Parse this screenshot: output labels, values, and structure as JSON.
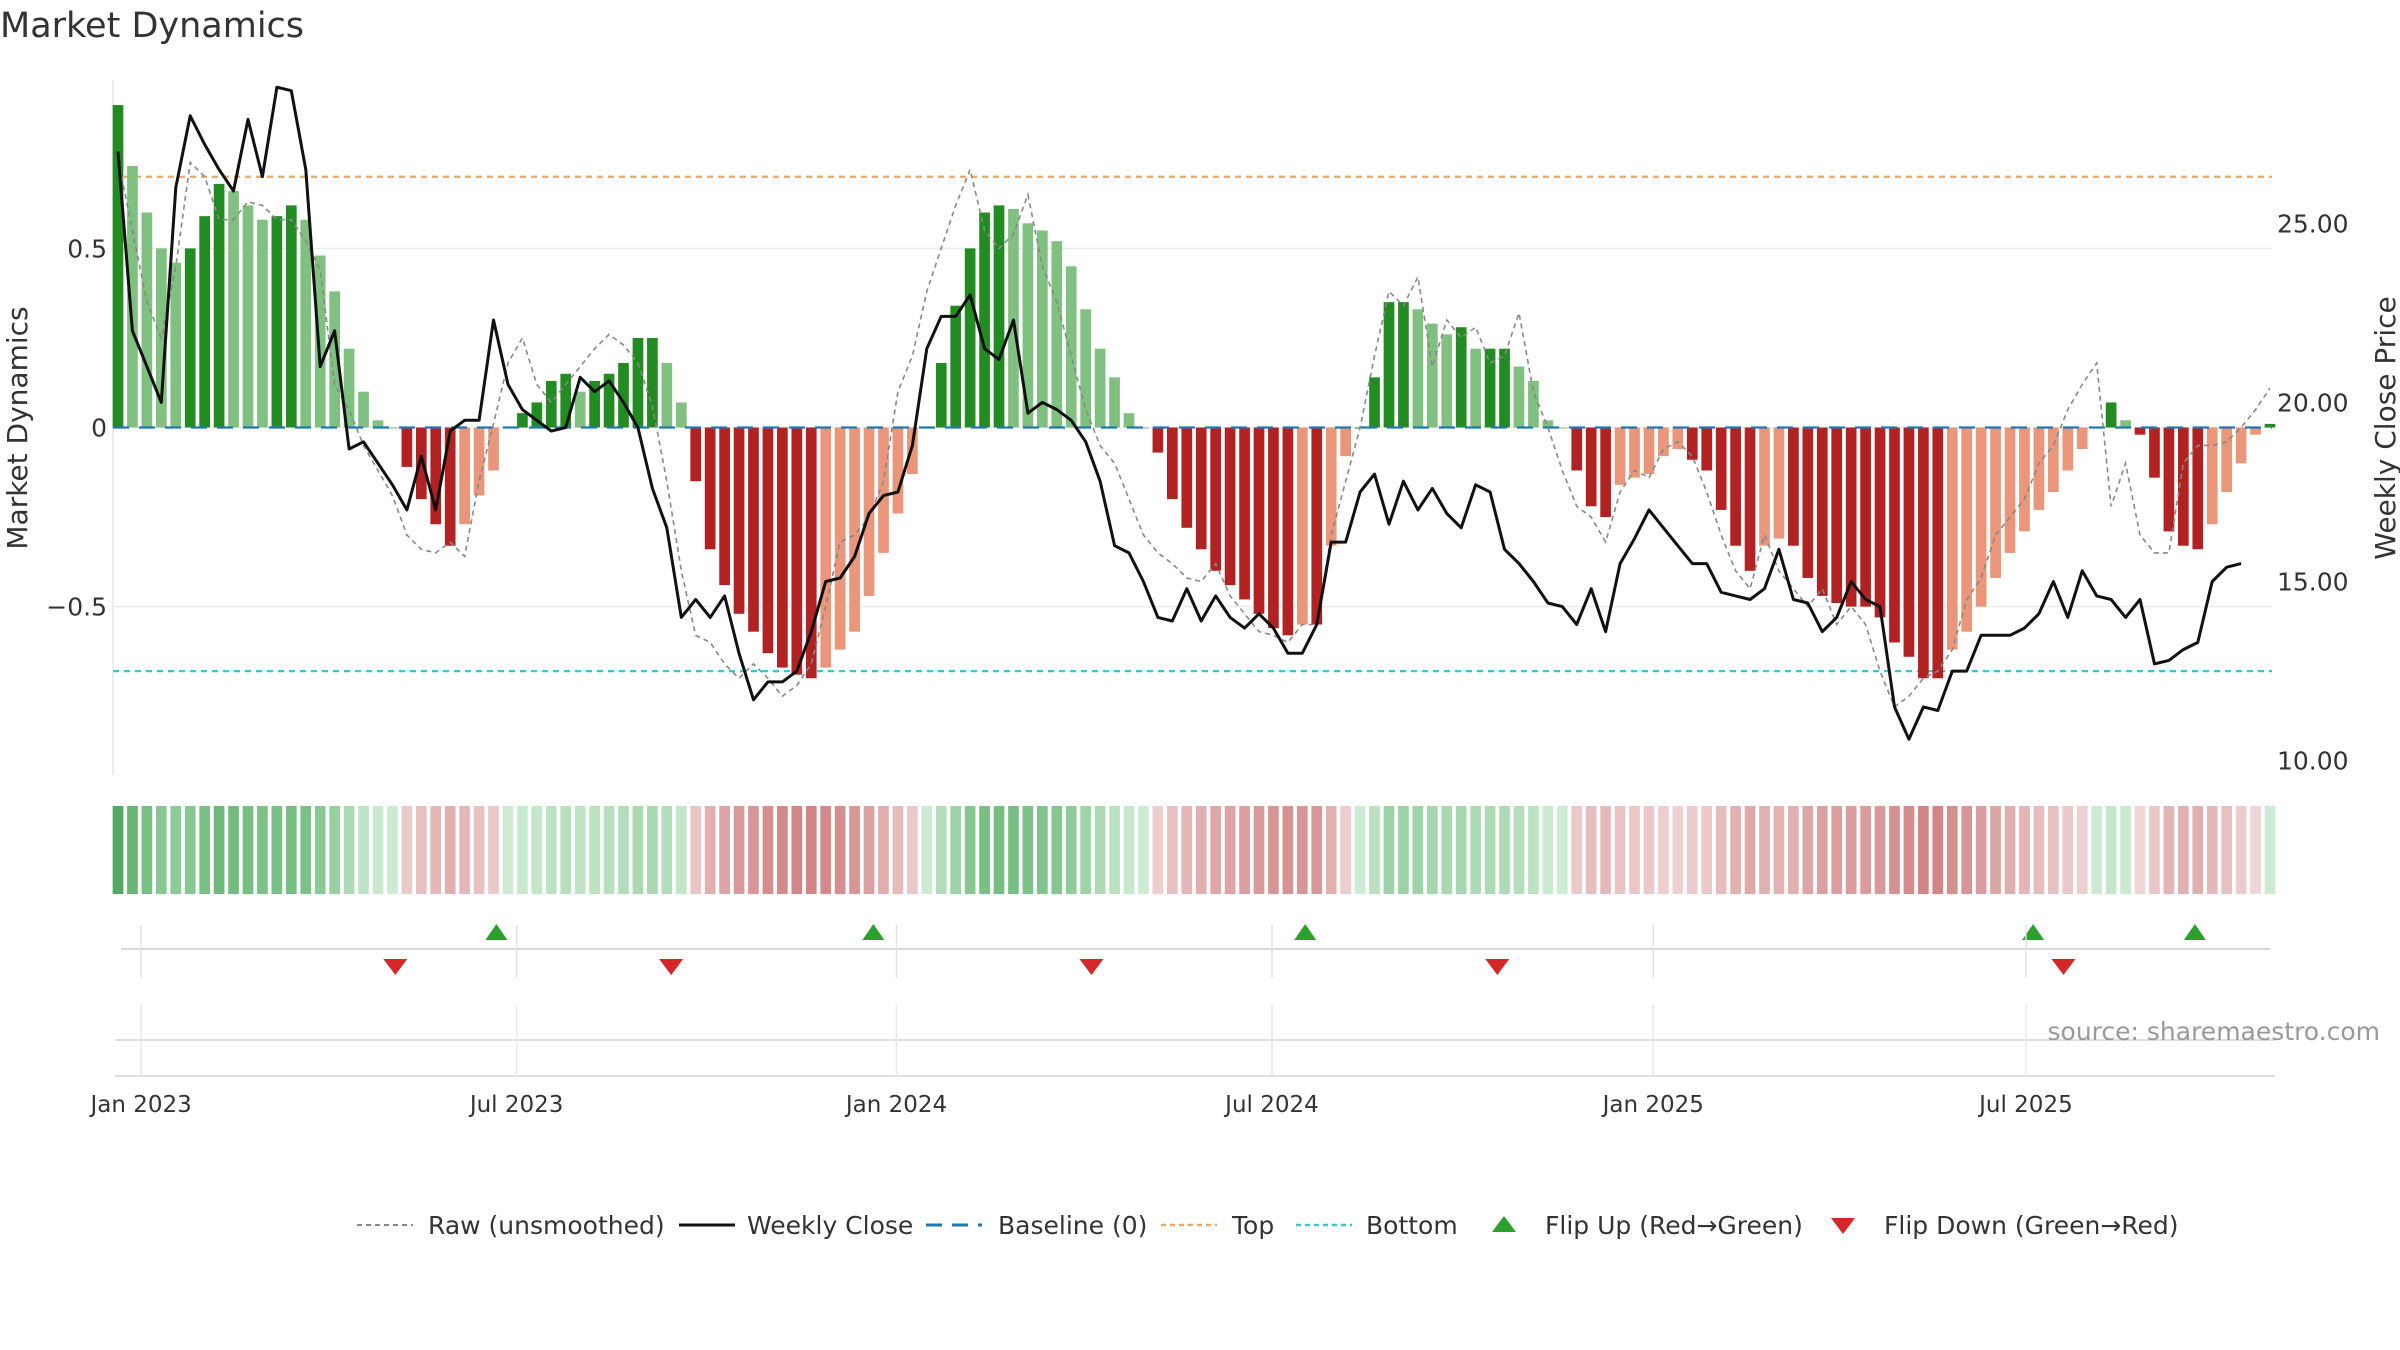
{
  "chart_data": {
    "type": "bar+line",
    "title": "Market Dynamics",
    "ylabel_left": "Market Dynamics",
    "ylabel_right": "Weekly Close Price",
    "source": "source: sharemaestro.com",
    "left_axis": {
      "ylim": [
        -0.97,
        0.97
      ],
      "ticks": [
        0.5,
        0,
        -0.5
      ],
      "tick_labels": [
        "0.5",
        "0",
        "−0.5"
      ]
    },
    "right_axis": {
      "ylim": [
        9.6,
        29.0
      ],
      "ticks": [
        25,
        20,
        15,
        10
      ],
      "tick_labels": [
        "25.00",
        "20.00",
        "15.00",
        "10.00"
      ]
    },
    "x_axis": {
      "start": "2022-12-26",
      "weeks": 144,
      "ticks": [
        {
          "week": 1.6,
          "label": "Jan 2023"
        },
        {
          "week": 27.6,
          "label": "Jul 2023"
        },
        {
          "week": 53.9,
          "label": "Jan 2024"
        },
        {
          "week": 79.9,
          "label": "Jul 2024"
        },
        {
          "week": 106.3,
          "label": "Jan 2025"
        },
        {
          "week": 132.1,
          "label": "Jul 2025"
        }
      ]
    },
    "thresholds": {
      "top": 0.7,
      "bottom": -0.68,
      "baseline": 0
    },
    "smoothed": [
      0.9,
      0.73,
      0.6,
      0.5,
      0.46,
      0.5,
      0.59,
      0.68,
      0.66,
      0.62,
      0.58,
      0.59,
      0.62,
      0.58,
      0.48,
      0.38,
      0.22,
      0.1,
      0.02,
      0.0,
      -0.11,
      -0.2,
      -0.27,
      -0.33,
      -0.27,
      -0.19,
      -0.12,
      0.0,
      0.04,
      0.07,
      0.13,
      0.15,
      0.1,
      0.13,
      0.15,
      0.18,
      0.25,
      0.25,
      0.18,
      0.07,
      -0.15,
      -0.34,
      -0.44,
      -0.52,
      -0.57,
      -0.63,
      -0.67,
      -0.69,
      -0.7,
      -0.67,
      -0.62,
      -0.57,
      -0.47,
      -0.35,
      -0.24,
      -0.13,
      0.0,
      0.18,
      0.34,
      0.5,
      0.6,
      0.62,
      0.61,
      0.57,
      0.55,
      0.52,
      0.45,
      0.33,
      0.22,
      0.14,
      0.04,
      0.0,
      -0.07,
      -0.2,
      -0.28,
      -0.34,
      -0.4,
      -0.44,
      -0.48,
      -0.52,
      -0.56,
      -0.58,
      -0.55,
      -0.55,
      -0.33,
      -0.08,
      0.0,
      0.14,
      0.35,
      0.35,
      0.33,
      0.29,
      0.26,
      0.28,
      0.22,
      0.22,
      0.22,
      0.17,
      0.13,
      0.02,
      0.0,
      -0.12,
      -0.22,
      -0.25,
      -0.16,
      -0.14,
      -0.13,
      -0.08,
      -0.06,
      -0.09,
      -0.12,
      -0.23,
      -0.33,
      -0.4,
      -0.33,
      -0.31,
      -0.33,
      -0.42,
      -0.47,
      -0.49,
      -0.5,
      -0.5,
      -0.53,
      -0.6,
      -0.64,
      -0.7,
      -0.7,
      -0.62,
      -0.57,
      -0.5,
      -0.42,
      -0.35,
      -0.29,
      -0.23,
      -0.18,
      -0.12,
      -0.06,
      0.0,
      0.07,
      0.02,
      -0.02,
      -0.14,
      -0.29,
      -0.33,
      -0.34,
      -0.27,
      -0.18,
      -0.1,
      -0.02,
      0.01
    ],
    "raw": [
      0.75,
      0.55,
      0.35,
      0.25,
      0.45,
      0.74,
      0.7,
      0.58,
      0.58,
      0.63,
      0.62,
      0.58,
      0.58,
      0.52,
      0.44,
      0.12,
      0.05,
      -0.05,
      -0.12,
      -0.19,
      -0.3,
      -0.34,
      -0.35,
      -0.32,
      -0.36,
      -0.15,
      0.01,
      0.18,
      0.25,
      0.12,
      0.07,
      0.12,
      0.17,
      0.22,
      0.26,
      0.23,
      0.18,
      0.06,
      -0.15,
      -0.4,
      -0.58,
      -0.6,
      -0.66,
      -0.7,
      -0.66,
      -0.7,
      -0.75,
      -0.72,
      -0.66,
      -0.5,
      -0.32,
      -0.3,
      -0.25,
      -0.15,
      0.1,
      0.2,
      0.38,
      0.5,
      0.62,
      0.72,
      0.55,
      0.5,
      0.54,
      0.65,
      0.45,
      0.35,
      0.2,
      0.05,
      -0.05,
      -0.1,
      -0.2,
      -0.3,
      -0.35,
      -0.38,
      -0.42,
      -0.43,
      -0.38,
      -0.47,
      -0.52,
      -0.57,
      -0.58,
      -0.6,
      -0.55,
      -0.55,
      -0.3,
      -0.15,
      0.0,
      0.2,
      0.38,
      0.34,
      0.42,
      0.17,
      0.3,
      0.25,
      0.28,
      0.18,
      0.2,
      0.32,
      0.1,
      0.0,
      -0.12,
      -0.22,
      -0.25,
      -0.32,
      -0.18,
      -0.12,
      -0.14,
      -0.06,
      -0.04,
      -0.08,
      -0.18,
      -0.3,
      -0.4,
      -0.45,
      -0.3,
      -0.4,
      -0.45,
      -0.5,
      -0.45,
      -0.55,
      -0.5,
      -0.55,
      -0.68,
      -0.78,
      -0.75,
      -0.7,
      -0.68,
      -0.62,
      -0.48,
      -0.42,
      -0.3,
      -0.25,
      -0.2,
      -0.1,
      -0.05,
      0.05,
      0.12,
      0.18,
      -0.22,
      -0.1,
      -0.3,
      -0.35,
      -0.35,
      -0.1,
      -0.05,
      -0.05,
      -0.04,
      0.0,
      0.05,
      0.11
    ],
    "weekly_close": [
      27.0,
      22.0,
      21.0,
      20.0,
      26.0,
      28.0,
      27.2,
      26.5,
      25.9,
      27.9,
      26.3,
      28.8,
      28.7,
      26.5,
      21.0,
      22.0,
      18.7,
      18.9,
      18.3,
      17.7,
      17.0,
      18.5,
      17.0,
      19.2,
      19.5,
      19.5,
      22.3,
      20.5,
      19.8,
      19.5,
      19.2,
      19.3,
      20.7,
      20.3,
      20.6,
      20.0,
      19.3,
      17.6,
      16.5,
      14.0,
      14.5,
      14.0,
      14.6,
      13.0,
      11.7,
      12.2,
      12.2,
      12.5,
      13.6,
      15.0,
      15.1,
      15.7,
      16.9,
      17.4,
      17.5,
      18.8,
      21.5,
      22.4,
      22.4,
      23.0,
      21.5,
      21.2,
      22.3,
      19.7,
      20.0,
      19.8,
      19.5,
      18.9,
      17.8,
      16.0,
      15.8,
      15.0,
      14.0,
      13.9,
      14.8,
      13.9,
      14.6,
      14.0,
      13.7,
      14.1,
      13.7,
      13.0,
      13.0,
      13.8,
      16.1,
      16.1,
      17.5,
      18.0,
      16.6,
      17.8,
      17.0,
      17.6,
      16.9,
      16.5,
      17.7,
      17.5,
      15.9,
      15.5,
      15.0,
      14.4,
      14.3,
      13.8,
      14.8,
      13.6,
      15.5,
      16.2,
      17.0,
      16.5,
      16.0,
      15.5,
      15.5,
      14.7,
      14.6,
      14.5,
      14.8,
      15.9,
      14.5,
      14.4,
      13.6,
      14.0,
      15.0,
      14.5,
      14.3,
      11.5,
      10.6,
      11.5,
      11.4,
      12.5,
      12.5,
      13.5,
      13.5,
      13.5,
      13.7,
      14.1,
      15.0,
      14.0,
      15.3,
      14.6,
      14.5,
      14.0,
      14.5,
      12.7,
      12.8,
      13.1,
      13.3,
      15.0,
      15.4,
      15.5
    ],
    "flip_up_weeks": [
      26.2,
      52.3,
      82.2,
      132.6,
      143.8
    ],
    "flip_down_weeks": [
      19.2,
      38.3,
      67.4,
      95.5,
      134.7
    ],
    "regime_ribbon": "colors follow smoothed value: green shades when positive, red shades when negative"
  },
  "legend": [
    {
      "key": "raw",
      "label": "Raw (unsmoothed)"
    },
    {
      "key": "close",
      "label": "Weekly Close"
    },
    {
      "key": "baseline",
      "label": "Baseline (0)"
    },
    {
      "key": "top",
      "label": "Top"
    },
    {
      "key": "bottom",
      "label": "Bottom"
    },
    {
      "key": "flip_up",
      "label": "Flip Up (Red→Green)"
    },
    {
      "key": "flip_down",
      "label": "Flip Down (Green→Red)"
    }
  ],
  "colors": {
    "green_strong": "#228b22",
    "green_light": "#80c080",
    "red_strong": "#b22222",
    "red_light": "#e9967a",
    "close": "#111111",
    "raw": "#888888",
    "baseline": "#1f77b4",
    "top": "#e8a96a",
    "bottom": "#3bc4d4",
    "flip_up": "#2ca02c",
    "flip_down": "#d62728"
  }
}
